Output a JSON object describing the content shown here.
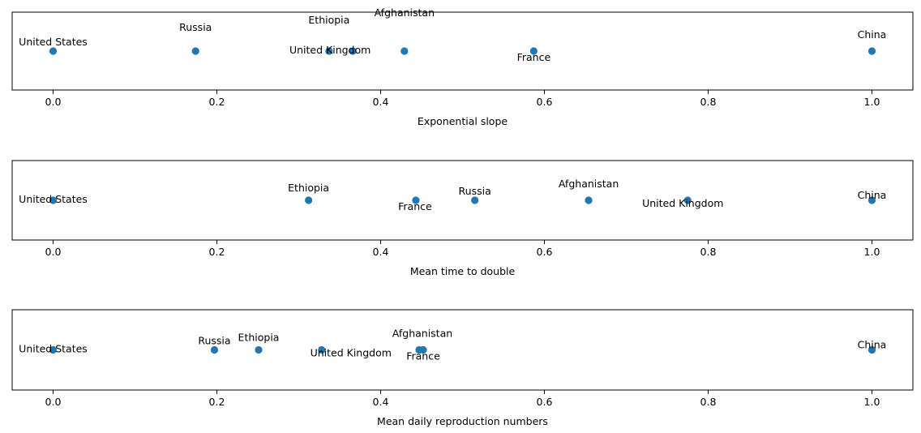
{
  "chart_data": [
    {
      "type": "scatter",
      "xlabel": "Exponential slope",
      "xlim": [
        -0.05,
        1.05
      ],
      "xticks": [
        "0.0",
        "0.2",
        "0.4",
        "0.6",
        "0.8",
        "1.0"
      ],
      "marker_color": "#1f77b4",
      "points": [
        {
          "label": "United States",
          "x": 0.0
        },
        {
          "label": "Russia",
          "x": 0.174
        },
        {
          "label": "Ethiopia",
          "x": 0.337
        },
        {
          "label": "United Kingdom",
          "x": 0.366
        },
        {
          "label": "Afghanistan",
          "x": 0.429
        },
        {
          "label": "France",
          "x": 0.587
        },
        {
          "label": "China",
          "x": 1.0
        }
      ]
    },
    {
      "type": "scatter",
      "xlabel": "Mean time to double",
      "xlim": [
        -0.05,
        1.05
      ],
      "xticks": [
        "0.0",
        "0.2",
        "0.4",
        "0.6",
        "0.8",
        "1.0"
      ],
      "marker_color": "#1f77b4",
      "points": [
        {
          "label": "United States",
          "x": 0.0
        },
        {
          "label": "Ethiopia",
          "x": 0.312
        },
        {
          "label": "France",
          "x": 0.443
        },
        {
          "label": "Russia",
          "x": 0.515
        },
        {
          "label": "Afghanistan",
          "x": 0.654
        },
        {
          "label": "United Kingdom",
          "x": 0.775
        },
        {
          "label": "China",
          "x": 1.0
        }
      ]
    },
    {
      "type": "scatter",
      "xlabel": "Mean daily reproduction numbers",
      "xlim": [
        -0.05,
        1.05
      ],
      "xticks": [
        "0.0",
        "0.2",
        "0.4",
        "0.6",
        "0.8",
        "1.0"
      ],
      "marker_color": "#1f77b4",
      "points": [
        {
          "label": "United States",
          "x": 0.0
        },
        {
          "label": "Russia",
          "x": 0.197
        },
        {
          "label": "Ethiopia",
          "x": 0.251
        },
        {
          "label": "United Kingdom",
          "x": 0.328
        },
        {
          "label": "Afghanistan",
          "x": 0.447
        },
        {
          "label": "France",
          "x": 0.452
        },
        {
          "label": "China",
          "x": 1.0
        }
      ]
    }
  ]
}
